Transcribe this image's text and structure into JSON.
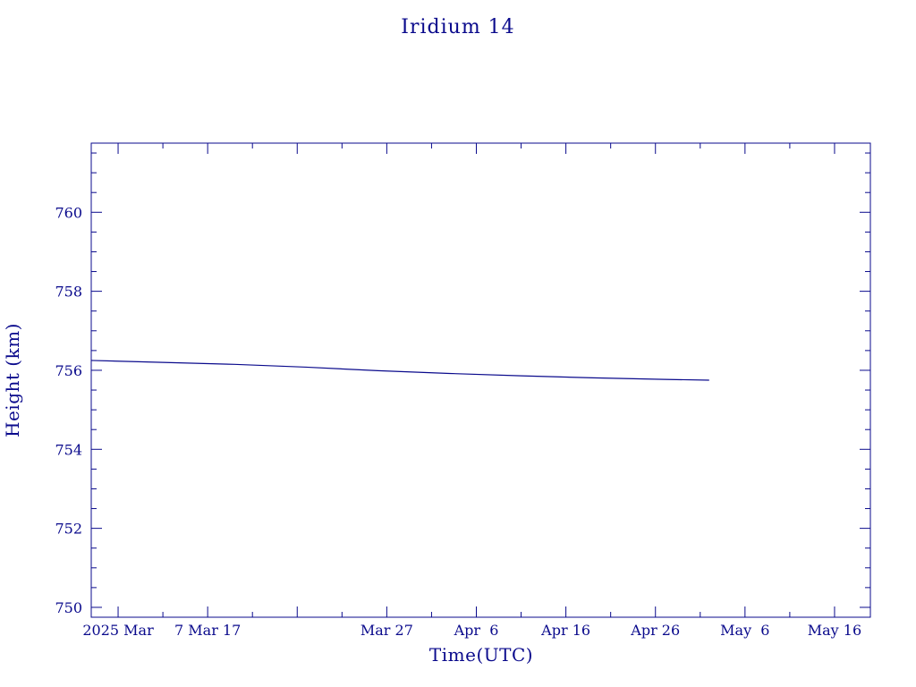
{
  "colors": {
    "ink": "#0a0a8c",
    "series": "#0a0a8c",
    "background": "#ffffff"
  },
  "chart_data": {
    "type": "line",
    "title": "Iridium 14",
    "xlabel": "Time(UTC)",
    "ylabel": "Height (km)",
    "grid": false,
    "legend": "none",
    "xlim": [
      "2025-02-22",
      "2025-05-20"
    ],
    "ylim": [
      749.75,
      761.75
    ],
    "y_ticks": [
      750,
      752,
      754,
      756,
      758,
      760
    ],
    "y_tick_labels": [
      "750",
      "752",
      "754",
      "756",
      "758",
      "760"
    ],
    "x_ticks": [
      "2025-02-25",
      "2025-03-07",
      "2025-03-17",
      "2025-03-27",
      "2025-04-06",
      "2025-04-16",
      "2025-04-26",
      "2025-05-06",
      "2025-05-16"
    ],
    "x_tick_labels": [
      "2025 Mar",
      "7 Mar 17",
      "",
      "Mar 27",
      "Apr  6",
      "Apr 16",
      "Apr 26",
      "May  6",
      "May 16"
    ],
    "series": [
      {
        "x": [
          "2025-02-22",
          "2025-03-02",
          "2025-03-10",
          "2025-03-18",
          "2025-03-26",
          "2025-04-03",
          "2025-04-11",
          "2025-04-19",
          "2025-04-27",
          "2025-05-02"
        ],
        "y": [
          756.25,
          756.2,
          756.15,
          756.08,
          755.99,
          755.92,
          755.86,
          755.81,
          755.77,
          755.75
        ]
      }
    ]
  }
}
